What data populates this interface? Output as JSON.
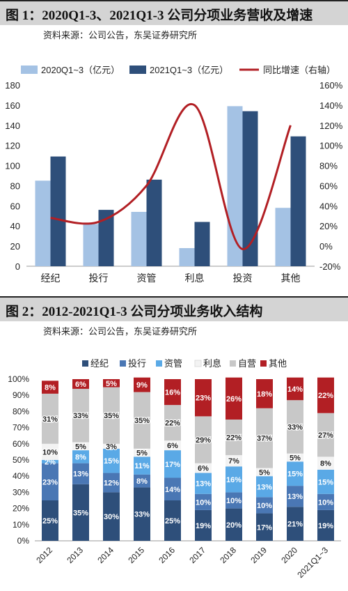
{
  "figure1": {
    "title": "图 1：2020Q1-3、2021Q1-3 公司分项业务营收及增速",
    "source": "资料来源：公司公告，东吴证券研究所"
  },
  "figure2": {
    "title": "图 2：2012-2021Q1-3 公司分项业务收入结构",
    "source": "资料来源：公司公告，东吴证券研究所"
  },
  "chart_data": [
    {
      "type": "bar",
      "categories": [
        "经纪",
        "投行",
        "资管",
        "利息",
        "投资",
        "其他"
      ],
      "series": [
        {
          "name": "2020Q1~3（亿元）",
          "type": "bar",
          "axis": "left",
          "color": "#a4c2e4",
          "values": [
            85,
            42,
            54,
            18,
            159,
            58
          ]
        },
        {
          "name": "2021Q1~3（亿元）",
          "type": "bar",
          "axis": "left",
          "color": "#2e4f7a",
          "values": [
            109,
            56,
            86,
            44,
            154,
            129
          ]
        },
        {
          "name": "同比增速（右轴）",
          "type": "line",
          "axis": "right",
          "color": "#b21f24",
          "values": [
            28,
            24,
            60,
            140,
            -3,
            120
          ]
        }
      ],
      "ylim": [
        0,
        180
      ],
      "yticks": [
        "0",
        "20",
        "40",
        "60",
        "80",
        "100",
        "120",
        "140",
        "160",
        "180"
      ],
      "y2lim": [
        -20,
        160
      ],
      "y2ticks": [
        "-20%",
        "0%",
        "20%",
        "40%",
        "60%",
        "80%",
        "100%",
        "120%",
        "140%",
        "160%"
      ],
      "legend": "top",
      "grid": false
    },
    {
      "type": "bar",
      "stacked": true,
      "categories": [
        "2012",
        "2013",
        "2014",
        "2015",
        "2016",
        "2017",
        "2018",
        "2019",
        "2020",
        "2021Q1~3"
      ],
      "yticks": [
        "0%",
        "10%",
        "20%",
        "30%",
        "40%",
        "50%",
        "60%",
        "70%",
        "80%",
        "90%",
        "100%"
      ],
      "legend": "top",
      "grid": false,
      "series": [
        {
          "name": "经纪",
          "color": "#2e4f7a",
          "values": [
            25,
            35,
            30,
            33,
            25,
            19,
            20,
            17,
            21,
            19
          ],
          "labels": [
            "25%",
            "35%",
            "30%",
            "33%",
            "25%",
            "19%",
            "20%",
            "17%",
            "21%",
            "19%"
          ]
        },
        {
          "name": "投行",
          "color": "#4a77b4",
          "values": [
            23,
            13,
            12,
            8,
            14,
            10,
            10,
            10,
            13,
            10
          ],
          "labels": [
            "23%",
            "13%",
            "12%",
            "8%",
            "14%",
            "10%",
            "10%",
            "10%",
            "13%",
            "10%"
          ]
        },
        {
          "name": "资管",
          "color": "#5aa9e6",
          "values": [
            2,
            8,
            15,
            11,
            17,
            13,
            16,
            13,
            15,
            15
          ],
          "labels": [
            "2%",
            "8%",
            "15%",
            "11%",
            "17%",
            "13%",
            "16%",
            "13%",
            "15%",
            "15%"
          ]
        },
        {
          "name": "利息",
          "color": "#f3f3f3",
          "values": [
            10,
            5,
            3,
            5,
            6,
            6,
            7,
            5,
            5,
            8
          ],
          "labels": [
            "10%",
            "5%",
            "3%",
            "5%",
            "6%",
            "6%",
            "7%",
            "5%",
            "5%",
            "8%"
          ]
        },
        {
          "name": "自营",
          "color": "#c8c8c8",
          "values": [
            31,
            33,
            35,
            35,
            22,
            29,
            22,
            37,
            33,
            27
          ],
          "labels": [
            "31%",
            "33%",
            "35%",
            "35%",
            "22%",
            "29%",
            "22%",
            "37%",
            "33%",
            "27%"
          ]
        },
        {
          "name": "其他",
          "color": "#b21f24",
          "values": [
            8,
            6,
            5,
            9,
            16,
            23,
            26,
            18,
            14,
            22
          ],
          "labels": [
            "8%",
            "6%",
            "5%",
            "9%",
            "16%",
            "23%",
            "26%",
            "18%",
            "14%",
            "22%"
          ]
        }
      ]
    }
  ]
}
